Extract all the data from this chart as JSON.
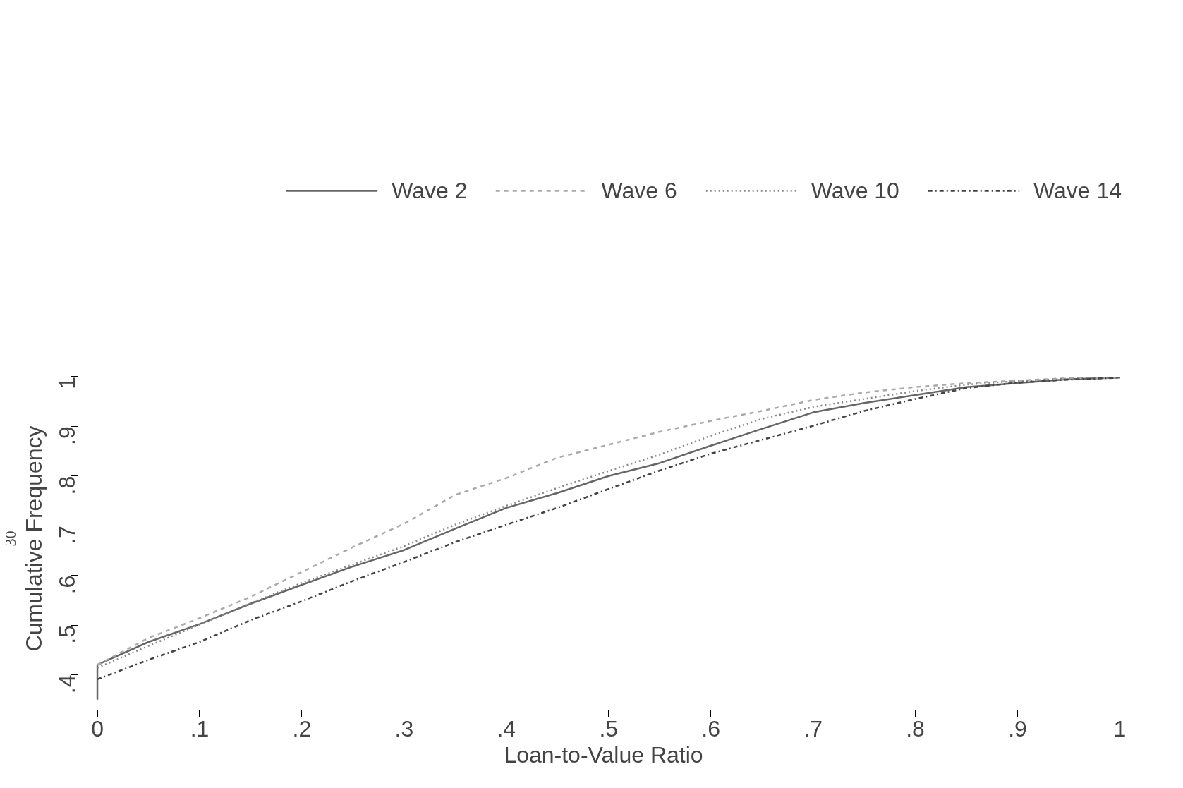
{
  "chart_data": {
    "type": "line",
    "xlabel": "Loan-to-Value Ratio",
    "ylabel": "Cumulative Frequency",
    "annotations": [
      "30"
    ],
    "xlim": [
      -0.019,
      1.009
    ],
    "ylim": [
      0.329,
      1.019
    ],
    "xticks": [
      0,
      {
        "value": 0.1,
        "label": ".1"
      },
      {
        "value": 0.2,
        "label": ".2"
      },
      {
        "value": 0.3,
        "label": ".3"
      },
      {
        "value": 0.4,
        "label": ".4"
      },
      {
        "value": 0.5,
        "label": ".5"
      },
      {
        "value": 0.6,
        "label": ".6"
      },
      {
        "value": 0.7,
        "label": ".7"
      },
      {
        "value": 0.8,
        "label": ".8"
      },
      {
        "value": 0.9,
        "label": ".9"
      },
      1
    ],
    "yticks": [
      {
        "value": 0.4,
        "label": ".4"
      },
      {
        "value": 0.5,
        "label": ".5"
      },
      {
        "value": 0.6,
        "label": ".6"
      },
      {
        "value": 0.7,
        "label": ".7"
      },
      {
        "value": 0.8,
        "label": ".8"
      },
      {
        "value": 0.9,
        "label": ".9"
      },
      1
    ],
    "grid": false,
    "legend": "top",
    "marker": "none",
    "series": [
      {
        "name": "Wave 2",
        "color": "#666666",
        "line_style": "solid",
        "x": [
          0,
          0,
          0.05,
          0.1,
          0.15,
          0.2,
          0.25,
          0.3,
          0.35,
          0.4,
          0.45,
          0.5,
          0.55,
          0.6,
          0.65,
          0.7,
          0.75,
          0.8,
          0.85,
          0.9,
          0.95,
          1
        ],
        "values": [
          0.35,
          0.42,
          0.466,
          0.502,
          0.543,
          0.581,
          0.618,
          0.651,
          0.694,
          0.736,
          0.766,
          0.8,
          0.826,
          0.861,
          0.895,
          0.928,
          0.947,
          0.963,
          0.979,
          0.987,
          0.995,
          0.998
        ]
      },
      {
        "name": "Wave 6",
        "color": "#aaaaaa",
        "line_style": "dashed",
        "x": [
          0,
          0.05,
          0.1,
          0.15,
          0.2,
          0.25,
          0.3,
          0.35,
          0.4,
          0.45,
          0.5,
          0.55,
          0.6,
          0.65,
          0.7,
          0.75,
          0.8,
          0.85,
          0.9,
          0.95,
          1
        ],
        "values": [
          0.42,
          0.474,
          0.514,
          0.557,
          0.607,
          0.657,
          0.704,
          0.762,
          0.796,
          0.837,
          0.863,
          0.889,
          0.911,
          0.931,
          0.953,
          0.968,
          0.979,
          0.987,
          0.992,
          0.997,
          0.998
        ]
      },
      {
        "name": "Wave 10",
        "color": "#888888",
        "line_style": "dotted",
        "x": [
          0,
          0.05,
          0.1,
          0.15,
          0.2,
          0.25,
          0.3,
          0.35,
          0.4,
          0.45,
          0.5,
          0.55,
          0.6,
          0.65,
          0.7,
          0.75,
          0.8,
          0.85,
          0.9,
          0.95,
          1
        ],
        "values": [
          0.414,
          0.458,
          0.501,
          0.544,
          0.585,
          0.622,
          0.659,
          0.702,
          0.74,
          0.776,
          0.81,
          0.843,
          0.881,
          0.915,
          0.939,
          0.955,
          0.971,
          0.984,
          0.991,
          0.996,
          0.998
        ]
      },
      {
        "name": "Wave 14",
        "color": "#444444",
        "line_style": "dashdot",
        "x": [
          0,
          0.05,
          0.1,
          0.15,
          0.2,
          0.25,
          0.3,
          0.35,
          0.4,
          0.45,
          0.5,
          0.55,
          0.6,
          0.65,
          0.7,
          0.75,
          0.8,
          0.85,
          0.9,
          0.95,
          1
        ],
        "values": [
          0.391,
          0.43,
          0.466,
          0.51,
          0.548,
          0.589,
          0.627,
          0.667,
          0.702,
          0.736,
          0.774,
          0.811,
          0.845,
          0.873,
          0.901,
          0.931,
          0.955,
          0.977,
          0.988,
          0.994,
          0.998
        ]
      }
    ]
  }
}
